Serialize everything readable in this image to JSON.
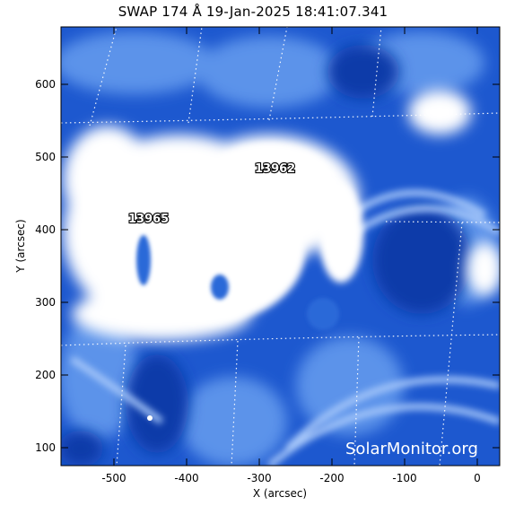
{
  "image": {
    "title": "SWAP 174 Å 19-Jan-2025 18:41:07.341",
    "x_axis_label": "X (arcsec)",
    "y_axis_label": "Y (arcsec)",
    "x_ticks": [
      "-500",
      "-400",
      "-300",
      "-200",
      "-100",
      "0"
    ],
    "y_ticks": [
      "100",
      "200",
      "300",
      "400",
      "500",
      "600"
    ],
    "active_regions": [
      {
        "id": "13965",
        "label": "13965"
      },
      {
        "id": "13962",
        "label": "13962"
      }
    ],
    "watermark": "SolarMonitor.org",
    "colors": {
      "emission_bright": "#ffffff",
      "emission_mid": "#6fa3f0",
      "emission_dark": "#0b3fb8",
      "grid": "#ffffff"
    },
    "grid_lines": true
  }
}
